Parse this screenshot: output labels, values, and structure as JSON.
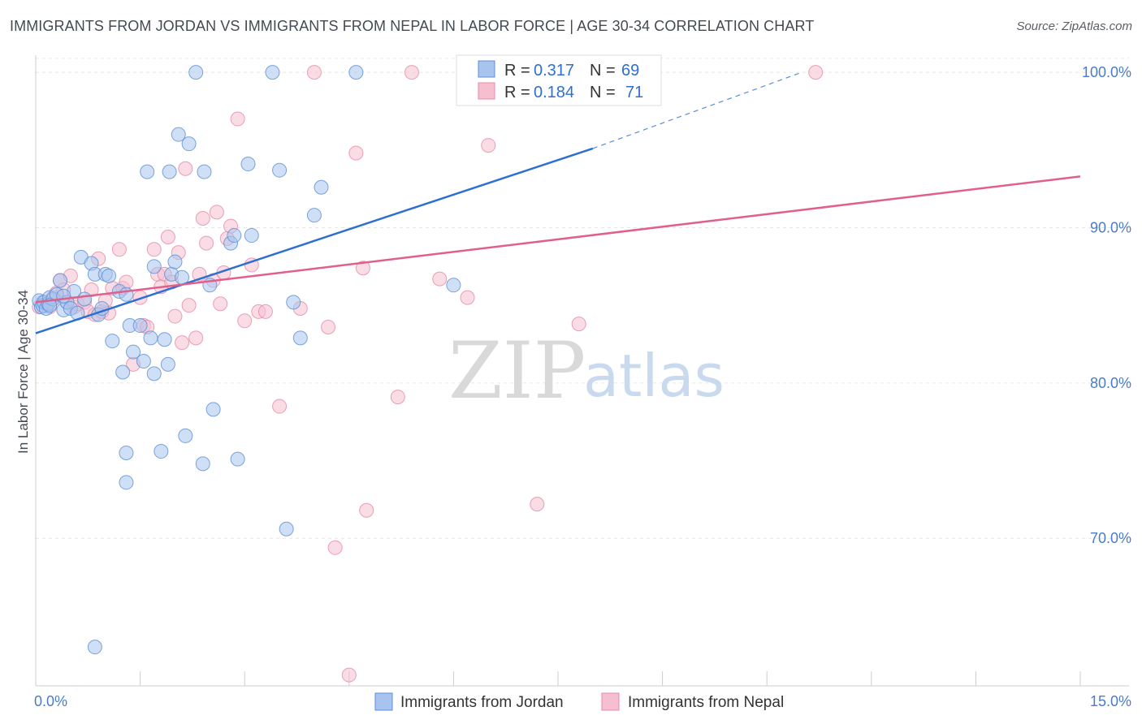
{
  "header": {
    "title": "IMMIGRANTS FROM JORDAN VS IMMIGRANTS FROM NEPAL IN LABOR FORCE | AGE 30-34 CORRELATION CHART",
    "source": "Source: ZipAtlas.com"
  },
  "watermark": {
    "zip": "ZIP",
    "atlas": "atlas"
  },
  "legend": {
    "rows": [
      {
        "r_label": "R = ",
        "r_value": "0.317",
        "n_label": "N = ",
        "n_value": "69"
      },
      {
        "r_label": "R = ",
        "r_value": "0.184",
        "n_label": "N = ",
        "n_value": "71"
      }
    ]
  },
  "colors": {
    "jordan_fill": "#a8c4ee",
    "jordan_stroke": "#5d8fd6",
    "jordan_line": "#2f6fcf",
    "nepal_fill": "#f6bfd0",
    "nepal_stroke": "#e58aa8",
    "nepal_line": "#e0608a",
    "grid": "#e6e6e6",
    "axis": "#cccccc"
  },
  "chart_data": {
    "type": "scatter",
    "title": "IMMIGRANTS FROM JORDAN VS IMMIGRANTS FROM NEPAL IN LABOR FORCE | AGE 30-34 CORRELATION CHART",
    "xlabel": "",
    "ylabel": "In Labor Force | Age 30-34",
    "xlim": [
      0,
      15
    ],
    "ylim": [
      60.5,
      101
    ],
    "x_tick_labels": [
      "0.0%",
      "15.0%"
    ],
    "y_ticks": [
      70,
      80,
      90,
      100
    ],
    "y_tick_labels": [
      "70.0%",
      "80.0%",
      "90.0%",
      "100.0%"
    ],
    "legend_placement": "top-center",
    "series": [
      {
        "name": "Immigrants from Jordan",
        "r": 0.317,
        "n": 69,
        "trend": {
          "x0": 0,
          "y0": 83.2,
          "x1": 8.0,
          "y1": 95.1,
          "dash_to_x": 11.0,
          "dash_to_y": 100.0
        },
        "points": [
          [
            0.05,
            85.3
          ],
          [
            0.08,
            84.9
          ],
          [
            0.1,
            85.0
          ],
          [
            0.12,
            85.2
          ],
          [
            0.15,
            84.8
          ],
          [
            0.18,
            85.1
          ],
          [
            0.2,
            85.5
          ],
          [
            0.25,
            85.4
          ],
          [
            0.3,
            85.7
          ],
          [
            0.35,
            86.6
          ],
          [
            0.4,
            84.7
          ],
          [
            0.45,
            85.2
          ],
          [
            0.5,
            84.8
          ],
          [
            0.55,
            85.9
          ],
          [
            0.6,
            84.5
          ],
          [
            0.65,
            88.1
          ],
          [
            0.7,
            85.4
          ],
          [
            0.8,
            87.7
          ],
          [
            0.85,
            87.0
          ],
          [
            0.9,
            84.4
          ],
          [
            0.95,
            84.8
          ],
          [
            1.0,
            87.0
          ],
          [
            1.05,
            86.9
          ],
          [
            1.1,
            82.7
          ],
          [
            1.2,
            85.9
          ],
          [
            1.25,
            80.7
          ],
          [
            1.3,
            85.7
          ],
          [
            1.35,
            83.7
          ],
          [
            1.4,
            82.0
          ],
          [
            1.5,
            83.7
          ],
          [
            1.55,
            81.4
          ],
          [
            1.6,
            93.6
          ],
          [
            1.65,
            82.9
          ],
          [
            1.7,
            80.6
          ],
          [
            1.8,
            75.6
          ],
          [
            1.85,
            82.8
          ],
          [
            1.9,
            81.2
          ],
          [
            1.92,
            93.6
          ],
          [
            1.95,
            87.0
          ],
          [
            2.0,
            87.8
          ],
          [
            2.05,
            96.0
          ],
          [
            2.1,
            86.8
          ],
          [
            2.15,
            76.6
          ],
          [
            2.2,
            95.4
          ],
          [
            2.3,
            100.0
          ],
          [
            2.4,
            74.8
          ],
          [
            2.42,
            93.6
          ],
          [
            2.5,
            86.3
          ],
          [
            2.55,
            78.3
          ],
          [
            2.8,
            89.0
          ],
          [
            2.85,
            89.5
          ],
          [
            2.9,
            75.1
          ],
          [
            3.05,
            94.1
          ],
          [
            3.1,
            89.5
          ],
          [
            3.4,
            100.0
          ],
          [
            3.5,
            93.7
          ],
          [
            3.6,
            70.6
          ],
          [
            3.7,
            85.2
          ],
          [
            3.8,
            82.9
          ],
          [
            4.0,
            90.8
          ],
          [
            4.1,
            92.6
          ],
          [
            4.6,
            100.0
          ],
          [
            6.0,
            86.3
          ],
          [
            0.85,
            63.0
          ],
          [
            1.7,
            87.5
          ],
          [
            1.3,
            75.5
          ],
          [
            1.3,
            73.6
          ],
          [
            0.2,
            85.0
          ],
          [
            0.4,
            85.6
          ]
        ]
      },
      {
        "name": "Immigrants from Nepal",
        "r": 0.184,
        "n": 71,
        "trend": {
          "x0": 0,
          "y0": 85.2,
          "x1": 15.0,
          "y1": 93.3
        },
        "points": [
          [
            0.05,
            84.9
          ],
          [
            0.1,
            85.2
          ],
          [
            0.15,
            85.0
          ],
          [
            0.2,
            84.9
          ],
          [
            0.25,
            85.5
          ],
          [
            0.3,
            85.8
          ],
          [
            0.35,
            86.6
          ],
          [
            0.4,
            86.0
          ],
          [
            0.45,
            85.2
          ],
          [
            0.5,
            86.9
          ],
          [
            0.55,
            84.9
          ],
          [
            0.6,
            85.1
          ],
          [
            0.7,
            85.2
          ],
          [
            0.75,
            84.6
          ],
          [
            0.8,
            86.0
          ],
          [
            0.85,
            84.4
          ],
          [
            0.9,
            88.0
          ],
          [
            0.95,
            84.6
          ],
          [
            1.0,
            85.3
          ],
          [
            1.05,
            84.5
          ],
          [
            1.1,
            86.1
          ],
          [
            1.2,
            88.6
          ],
          [
            1.25,
            86.1
          ],
          [
            1.3,
            86.5
          ],
          [
            1.4,
            81.2
          ],
          [
            1.5,
            85.5
          ],
          [
            1.55,
            83.7
          ],
          [
            1.6,
            83.6
          ],
          [
            1.7,
            88.6
          ],
          [
            1.75,
            87.0
          ],
          [
            1.8,
            86.2
          ],
          [
            1.85,
            87.0
          ],
          [
            1.9,
            89.4
          ],
          [
            1.95,
            86.5
          ],
          [
            2.0,
            84.3
          ],
          [
            2.05,
            88.4
          ],
          [
            2.1,
            82.6
          ],
          [
            2.15,
            93.8
          ],
          [
            2.2,
            85.0
          ],
          [
            2.3,
            82.9
          ],
          [
            2.35,
            87.0
          ],
          [
            2.4,
            90.6
          ],
          [
            2.45,
            89.0
          ],
          [
            2.55,
            86.6
          ],
          [
            2.6,
            91.0
          ],
          [
            2.65,
            85.1
          ],
          [
            2.7,
            87.1
          ],
          [
            2.75,
            89.3
          ],
          [
            2.8,
            90.1
          ],
          [
            2.9,
            97.0
          ],
          [
            3.0,
            84.0
          ],
          [
            3.1,
            87.6
          ],
          [
            3.2,
            84.6
          ],
          [
            3.3,
            84.6
          ],
          [
            3.5,
            78.5
          ],
          [
            3.8,
            84.8
          ],
          [
            4.0,
            100.0
          ],
          [
            4.2,
            83.6
          ],
          [
            4.3,
            69.4
          ],
          [
            4.5,
            61.2
          ],
          [
            4.6,
            94.8
          ],
          [
            4.7,
            87.4
          ],
          [
            4.75,
            71.8
          ],
          [
            5.2,
            79.1
          ],
          [
            5.4,
            100.0
          ],
          [
            5.8,
            86.7
          ],
          [
            6.2,
            85.5
          ],
          [
            6.5,
            95.3
          ],
          [
            7.2,
            72.2
          ],
          [
            7.8,
            83.8
          ],
          [
            11.2,
            100.0
          ]
        ]
      }
    ]
  }
}
